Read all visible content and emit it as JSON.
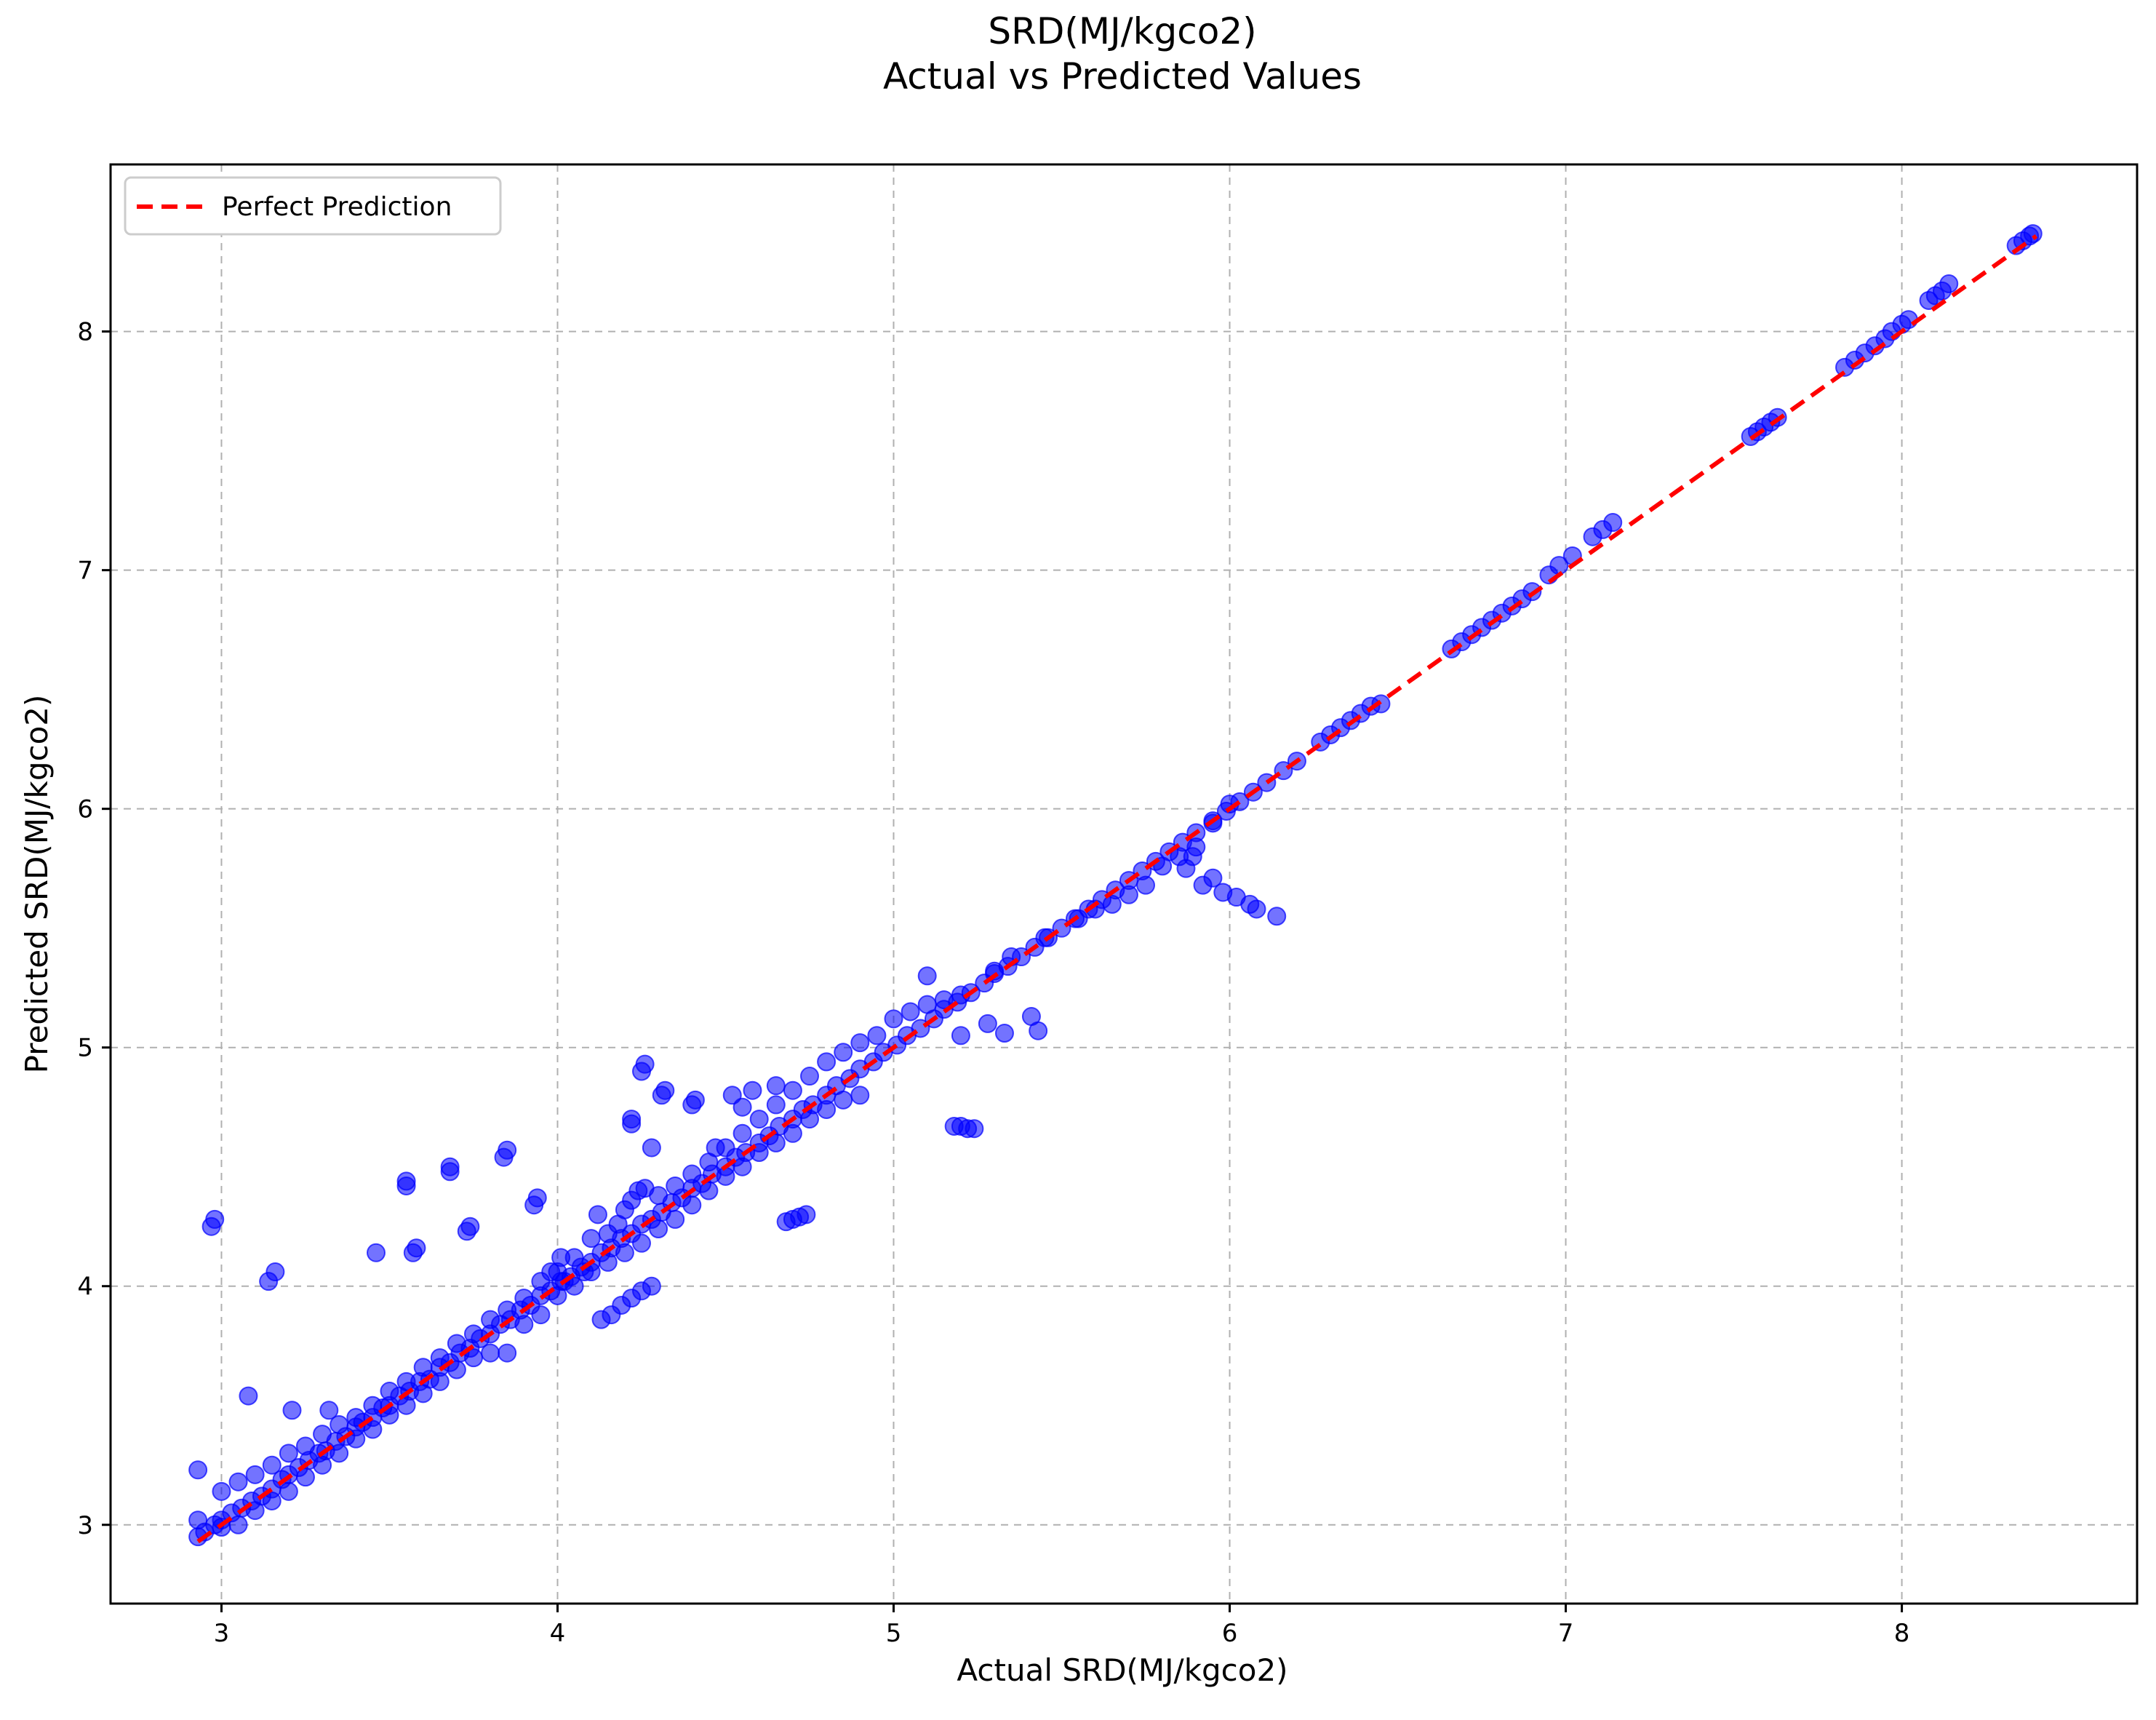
{
  "chart_data": {
    "type": "scatter",
    "title": "SRD(MJ/kgco2)",
    "subtitle": "Actual vs Predicted Values",
    "xlabel": "Actual SRD(MJ/kgco2)",
    "ylabel": "Predicted SRD(MJ/kgco2)",
    "xlim": [
      2.67,
      8.7
    ],
    "ylim": [
      2.67,
      8.7
    ],
    "xticks": [
      3,
      4,
      5,
      6,
      7,
      8
    ],
    "yticks": [
      3,
      4,
      5,
      6,
      7,
      8
    ],
    "grid": true,
    "legend_position": "top-left",
    "reference_line": {
      "name": "Perfect Prediction",
      "x": [
        2.93,
        8.4
      ],
      "y": [
        2.93,
        8.4
      ],
      "color": "#ff0000",
      "style": "dashed"
    },
    "point_color": "#0000ff",
    "point_alpha": 0.55,
    "series": [
      {
        "points": [
          [
            2.93,
            2.95
          ],
          [
            2.95,
            2.97
          ],
          [
            2.98,
            3.0
          ],
          [
            3.0,
            3.02
          ],
          [
            3.03,
            3.05
          ],
          [
            3.06,
            3.07
          ],
          [
            3.09,
            3.1
          ],
          [
            3.12,
            3.12
          ],
          [
            3.15,
            3.15
          ],
          [
            3.18,
            3.19
          ],
          [
            3.2,
            3.21
          ],
          [
            3.23,
            3.24
          ],
          [
            3.26,
            3.27
          ],
          [
            3.29,
            3.3
          ],
          [
            3.31,
            3.31
          ],
          [
            3.34,
            3.35
          ],
          [
            3.37,
            3.37
          ],
          [
            3.4,
            3.41
          ],
          [
            3.42,
            3.43
          ],
          [
            3.45,
            3.45
          ],
          [
            3.48,
            3.49
          ],
          [
            3.5,
            3.5
          ],
          [
            3.53,
            3.54
          ],
          [
            3.56,
            3.56
          ],
          [
            3.59,
            3.6
          ],
          [
            3.62,
            3.61
          ],
          [
            3.65,
            3.66
          ],
          [
            3.68,
            3.68
          ],
          [
            3.71,
            3.72
          ],
          [
            3.74,
            3.74
          ],
          [
            3.77,
            3.78
          ],
          [
            3.8,
            3.8
          ],
          [
            3.83,
            3.84
          ],
          [
            3.86,
            3.86
          ],
          [
            3.89,
            3.9
          ],
          [
            3.92,
            3.92
          ],
          [
            3.95,
            3.96
          ],
          [
            3.98,
            3.98
          ],
          [
            4.01,
            4.02
          ],
          [
            4.04,
            4.04
          ],
          [
            4.07,
            4.08
          ],
          [
            4.1,
            4.1
          ],
          [
            4.13,
            4.14
          ],
          [
            4.16,
            4.16
          ],
          [
            4.19,
            4.2
          ],
          [
            4.22,
            4.22
          ],
          [
            4.25,
            4.26
          ],
          [
            4.28,
            4.28
          ],
          [
            4.31,
            4.31
          ],
          [
            4.34,
            4.35
          ],
          [
            4.37,
            4.37
          ],
          [
            4.4,
            4.41
          ],
          [
            4.43,
            4.43
          ],
          [
            4.46,
            4.47
          ],
          [
            4.5,
            4.5
          ],
          [
            4.53,
            4.54
          ],
          [
            4.56,
            4.56
          ],
          [
            4.6,
            4.6
          ],
          [
            4.63,
            4.63
          ],
          [
            4.66,
            4.67
          ],
          [
            4.7,
            4.7
          ],
          [
            4.73,
            4.74
          ],
          [
            4.76,
            4.76
          ],
          [
            4.8,
            4.8
          ],
          [
            4.83,
            4.84
          ],
          [
            4.87,
            4.87
          ],
          [
            4.9,
            4.91
          ],
          [
            4.94,
            4.94
          ],
          [
            4.97,
            4.98
          ],
          [
            5.01,
            5.01
          ],
          [
            5.04,
            5.05
          ],
          [
            5.08,
            5.08
          ],
          [
            5.12,
            5.12
          ],
          [
            5.15,
            5.16
          ],
          [
            5.19,
            5.19
          ],
          [
            5.23,
            5.23
          ],
          [
            5.27,
            5.27
          ],
          [
            5.3,
            5.31
          ],
          [
            5.34,
            5.34
          ],
          [
            5.38,
            5.38
          ],
          [
            5.42,
            5.42
          ],
          [
            5.46,
            5.46
          ],
          [
            5.5,
            5.5
          ],
          [
            5.54,
            5.54
          ],
          [
            5.58,
            5.58
          ],
          [
            5.62,
            5.62
          ],
          [
            5.66,
            5.66
          ],
          [
            5.7,
            5.7
          ],
          [
            5.74,
            5.74
          ],
          [
            5.78,
            5.78
          ],
          [
            5.82,
            5.82
          ],
          [
            5.86,
            5.86
          ],
          [
            5.9,
            5.9
          ],
          [
            5.95,
            5.95
          ],
          [
            5.99,
            5.99
          ],
          [
            6.03,
            6.03
          ],
          [
            6.07,
            6.07
          ],
          [
            6.11,
            6.11
          ],
          [
            6.16,
            6.16
          ],
          [
            6.2,
            6.2
          ],
          [
            6.27,
            6.28
          ],
          [
            6.3,
            6.31
          ],
          [
            6.33,
            6.34
          ],
          [
            6.36,
            6.37
          ],
          [
            6.39,
            6.4
          ],
          [
            6.42,
            6.43
          ],
          [
            6.45,
            6.44
          ],
          [
            6.66,
            6.67
          ],
          [
            6.69,
            6.7
          ],
          [
            6.72,
            6.73
          ],
          [
            6.75,
            6.76
          ],
          [
            6.78,
            6.79
          ],
          [
            6.81,
            6.82
          ],
          [
            6.84,
            6.85
          ],
          [
            6.87,
            6.88
          ],
          [
            6.9,
            6.91
          ],
          [
            6.95,
            6.98
          ],
          [
            6.98,
            7.02
          ],
          [
            7.02,
            7.06
          ],
          [
            7.08,
            7.14
          ],
          [
            7.11,
            7.17
          ],
          [
            7.14,
            7.2
          ],
          [
            7.55,
            7.56
          ],
          [
            7.57,
            7.58
          ],
          [
            7.59,
            7.6
          ],
          [
            7.61,
            7.62
          ],
          [
            7.63,
            7.64
          ],
          [
            7.83,
            7.85
          ],
          [
            7.86,
            7.88
          ],
          [
            7.89,
            7.91
          ],
          [
            7.92,
            7.94
          ],
          [
            7.95,
            7.97
          ],
          [
            7.97,
            8.0
          ],
          [
            8.0,
            8.03
          ],
          [
            8.02,
            8.05
          ],
          [
            8.08,
            8.13
          ],
          [
            8.1,
            8.15
          ],
          [
            8.12,
            8.17
          ],
          [
            8.14,
            8.2
          ],
          [
            8.34,
            8.36
          ],
          [
            8.36,
            8.38
          ],
          [
            8.38,
            8.4
          ],
          [
            8.39,
            8.41
          ],
          [
            3.0,
            3.14
          ],
          [
            3.05,
            3.18
          ],
          [
            3.1,
            3.21
          ],
          [
            3.15,
            3.25
          ],
          [
            3.2,
            3.3
          ],
          [
            3.25,
            3.33
          ],
          [
            3.3,
            3.38
          ],
          [
            3.35,
            3.42
          ],
          [
            3.4,
            3.45
          ],
          [
            3.45,
            3.5
          ],
          [
            3.5,
            3.56
          ],
          [
            3.55,
            3.6
          ],
          [
            3.6,
            3.66
          ],
          [
            3.65,
            3.7
          ],
          [
            3.7,
            3.76
          ],
          [
            3.75,
            3.8
          ],
          [
            3.8,
            3.86
          ],
          [
            3.85,
            3.9
          ],
          [
            3.9,
            3.95
          ],
          [
            3.95,
            4.02
          ],
          [
            4.0,
            4.06
          ],
          [
            4.05,
            4.12
          ],
          [
            4.1,
            4.2
          ],
          [
            4.12,
            4.3
          ],
          [
            4.15,
            4.22
          ],
          [
            4.18,
            4.26
          ],
          [
            4.2,
            4.32
          ],
          [
            4.22,
            4.36
          ],
          [
            4.24,
            4.4
          ],
          [
            4.26,
            4.41
          ],
          [
            4.3,
            4.38
          ],
          [
            4.35,
            4.42
          ],
          [
            4.4,
            4.47
          ],
          [
            4.45,
            4.52
          ],
          [
            4.5,
            4.58
          ],
          [
            4.55,
            4.64
          ],
          [
            4.6,
            4.7
          ],
          [
            4.65,
            4.76
          ],
          [
            4.7,
            4.82
          ],
          [
            4.75,
            4.88
          ],
          [
            4.8,
            4.94
          ],
          [
            4.85,
            4.98
          ],
          [
            4.9,
            5.02
          ],
          [
            4.95,
            5.05
          ],
          [
            5.0,
            5.12
          ],
          [
            5.05,
            5.15
          ],
          [
            5.1,
            5.18
          ],
          [
            5.15,
            5.2
          ],
          [
            5.2,
            5.22
          ],
          [
            5.1,
            5.3
          ],
          [
            3.0,
            2.99
          ],
          [
            3.05,
            3.0
          ],
          [
            3.1,
            3.06
          ],
          [
            3.15,
            3.1
          ],
          [
            3.2,
            3.14
          ],
          [
            3.25,
            3.2
          ],
          [
            3.3,
            3.25
          ],
          [
            3.35,
            3.3
          ],
          [
            3.4,
            3.36
          ],
          [
            3.45,
            3.4
          ],
          [
            3.5,
            3.46
          ],
          [
            3.55,
            3.5
          ],
          [
            3.6,
            3.55
          ],
          [
            3.65,
            3.6
          ],
          [
            3.7,
            3.65
          ],
          [
            3.75,
            3.7
          ],
          [
            3.8,
            3.72
          ],
          [
            3.85,
            3.72
          ],
          [
            3.9,
            3.84
          ],
          [
            3.95,
            3.88
          ],
          [
            4.0,
            3.96
          ],
          [
            4.05,
            4.0
          ],
          [
            4.1,
            4.06
          ],
          [
            4.15,
            4.1
          ],
          [
            4.2,
            4.14
          ],
          [
            4.25,
            4.18
          ],
          [
            4.3,
            4.24
          ],
          [
            4.35,
            4.28
          ],
          [
            4.4,
            4.34
          ],
          [
            4.45,
            4.4
          ],
          [
            4.5,
            4.46
          ],
          [
            4.55,
            4.5
          ],
          [
            4.6,
            4.56
          ],
          [
            4.65,
            4.6
          ],
          [
            4.7,
            4.64
          ],
          [
            4.75,
            4.7
          ],
          [
            4.8,
            4.74
          ],
          [
            4.85,
            4.78
          ],
          [
            4.9,
            4.8
          ],
          [
            4.13,
            3.86
          ],
          [
            4.16,
            3.88
          ],
          [
            4.19,
            3.92
          ],
          [
            4.22,
            3.95
          ],
          [
            4.25,
            3.98
          ],
          [
            4.28,
            4.0
          ],
          [
            5.3,
            5.32
          ],
          [
            5.35,
            5.38
          ],
          [
            5.45,
            5.46
          ],
          [
            5.55,
            5.54
          ],
          [
            5.6,
            5.58
          ],
          [
            5.65,
            5.6
          ],
          [
            5.7,
            5.64
          ],
          [
            5.75,
            5.68
          ],
          [
            5.8,
            5.76
          ],
          [
            5.85,
            5.8
          ],
          [
            5.9,
            5.84
          ],
          [
            5.95,
            5.94
          ],
          [
            6.0,
            6.02
          ],
          [
            2.93,
            3.23
          ],
          [
            2.93,
            3.02
          ],
          [
            2.97,
            4.25
          ],
          [
            2.98,
            4.28
          ],
          [
            3.08,
            3.54
          ],
          [
            3.14,
            4.02
          ],
          [
            3.16,
            4.06
          ],
          [
            3.21,
            3.48
          ],
          [
            3.32,
            3.48
          ],
          [
            3.46,
            4.14
          ],
          [
            3.55,
            4.42
          ],
          [
            3.55,
            4.44
          ],
          [
            3.57,
            4.14
          ],
          [
            3.58,
            4.16
          ],
          [
            3.68,
            4.48
          ],
          [
            3.68,
            4.5
          ],
          [
            3.73,
            4.23
          ],
          [
            3.74,
            4.25
          ],
          [
            3.84,
            4.54
          ],
          [
            3.85,
            4.57
          ],
          [
            3.93,
            4.34
          ],
          [
            3.94,
            4.37
          ],
          [
            3.98,
            4.06
          ],
          [
            4.01,
            4.12
          ],
          [
            4.02,
            4.02
          ],
          [
            4.08,
            4.06
          ],
          [
            4.22,
            4.68
          ],
          [
            4.22,
            4.7
          ],
          [
            4.25,
            4.9
          ],
          [
            4.26,
            4.93
          ],
          [
            4.28,
            4.58
          ],
          [
            4.31,
            4.8
          ],
          [
            4.32,
            4.82
          ],
          [
            4.4,
            4.76
          ],
          [
            4.41,
            4.78
          ],
          [
            4.47,
            4.58
          ],
          [
            4.52,
            4.8
          ],
          [
            4.55,
            4.75
          ],
          [
            4.58,
            4.82
          ],
          [
            4.65,
            4.84
          ],
          [
            4.68,
            4.27
          ],
          [
            4.7,
            4.28
          ],
          [
            4.72,
            4.29
          ],
          [
            4.74,
            4.3
          ],
          [
            5.18,
            4.67
          ],
          [
            5.2,
            4.67
          ],
          [
            5.22,
            4.66
          ],
          [
            5.24,
            4.66
          ],
          [
            5.2,
            5.05
          ],
          [
            5.28,
            5.1
          ],
          [
            5.33,
            5.06
          ],
          [
            5.41,
            5.13
          ],
          [
            5.43,
            5.07
          ],
          [
            5.87,
            5.75
          ],
          [
            5.89,
            5.8
          ],
          [
            5.92,
            5.68
          ],
          [
            5.95,
            5.71
          ],
          [
            5.98,
            5.65
          ],
          [
            6.02,
            5.63
          ],
          [
            6.06,
            5.6
          ],
          [
            6.08,
            5.58
          ],
          [
            6.14,
            5.55
          ]
        ]
      }
    ]
  }
}
